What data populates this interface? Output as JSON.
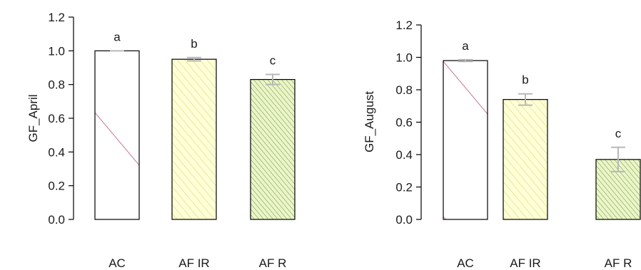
{
  "chart_data": [
    {
      "type": "bar",
      "ylabel": "GF_April",
      "xlabel": "",
      "categories": [
        "AC",
        "AF_IR",
        "AF_R"
      ],
      "category_labels": [
        "AC",
        "AF IR",
        "AF R"
      ],
      "values": [
        1.0,
        0.95,
        0.83
      ],
      "error": [
        0.0,
        0.01,
        0.03
      ],
      "significance": [
        "a",
        "b",
        "c"
      ],
      "ylim": [
        0,
        1.2
      ],
      "yticks": [
        "0.0",
        "0.2",
        "0.4",
        "0.6",
        "0.8",
        "1.0",
        "1.2"
      ],
      "grid": false
    },
    {
      "type": "bar",
      "ylabel": "GF_August",
      "xlabel": "",
      "categories": [
        "AC",
        "AF_IR",
        "AF_R"
      ],
      "category_labels": [
        "AC",
        "AF IR",
        "AF R"
      ],
      "values": [
        0.98,
        0.74,
        0.37
      ],
      "error": [
        0.005,
        0.035,
        0.075
      ],
      "significance": [
        "a",
        "b",
        "c"
      ],
      "ylim": [
        0,
        1.2
      ],
      "yticks": [
        "0.0",
        "0.2",
        "0.4",
        "0.6",
        "0.8",
        "1.0",
        "1.2"
      ],
      "grid": false
    }
  ],
  "style": {
    "bar_fills": [
      "#ffffff",
      "#ffffd8",
      "#eaf6c8"
    ],
    "hatch_colors": [
      "#a02040",
      "#d2d25c",
      "#6e8a3c"
    ],
    "bar_border": "#000000",
    "error_bar_color": "#b8b8b8",
    "axis_color": "#000000"
  }
}
